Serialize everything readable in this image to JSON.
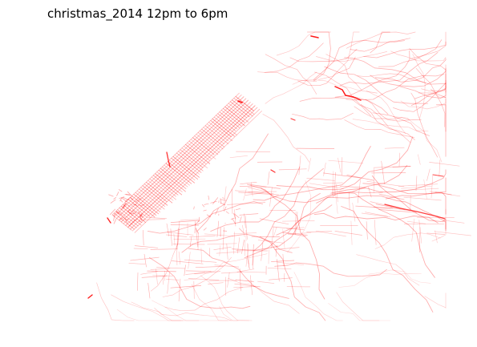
{
  "figure": {
    "title": "christmas_2014 12pm to 6pm",
    "line_color": "#ff0000",
    "background": "#ffffff",
    "axes_visible": false
  }
}
